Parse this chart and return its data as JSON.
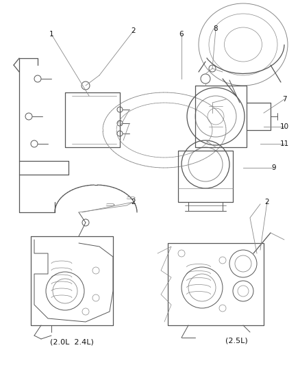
{
  "background_color": "#ffffff",
  "line_color": "#888888",
  "dark_line_color": "#555555",
  "text_color": "#111111",
  "fig_width": 4.38,
  "fig_height": 5.33,
  "dpi": 100,
  "sub_label_2L_4L": "(2.0L  2.4L)",
  "sub_label_2_5L": "(2.5L)"
}
